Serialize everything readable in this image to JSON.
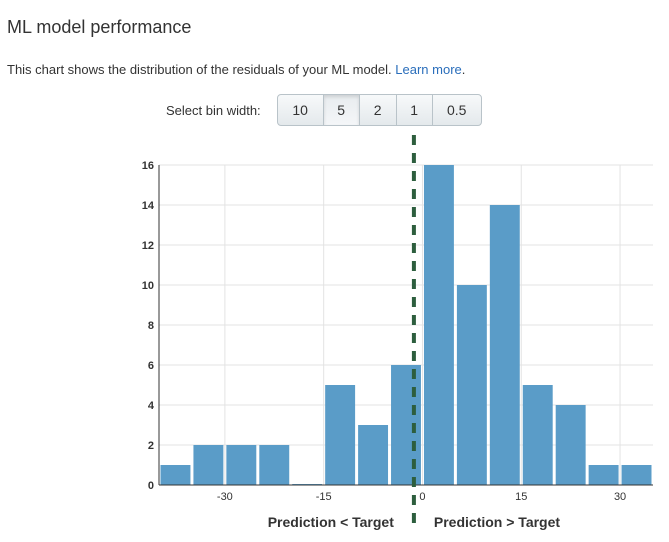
{
  "header": {
    "title": "ML model performance",
    "description": "This chart shows the distribution of the residuals of your ML model.",
    "learn_more": "Learn more",
    "period": "."
  },
  "bin_selector": {
    "label": "Select bin width:",
    "options": [
      "10",
      "5",
      "2",
      "1",
      "0.5"
    ],
    "selected": "5"
  },
  "colors": {
    "bar": "#5a9cc8",
    "divider": "#2d5e3e",
    "grid": "#e3e3e3"
  },
  "chart_data": {
    "type": "bar",
    "bin_width": 5,
    "bin_centers": [
      -37.5,
      -32.5,
      -27.5,
      -22.5,
      -17.5,
      -12.5,
      -7.5,
      -2.5,
      2.5,
      7.5,
      12.5,
      17.5,
      22.5,
      27.5,
      32.5
    ],
    "values": [
      1,
      2,
      2,
      2,
      0.05,
      5,
      3,
      6,
      16,
      10,
      14,
      5,
      4,
      1,
      1
    ],
    "xlim": [
      -40,
      35
    ],
    "ylim": [
      0,
      16
    ],
    "xticks": [
      -30,
      -15,
      0,
      15,
      30
    ],
    "yticks": [
      0,
      2,
      4,
      6,
      8,
      10,
      12,
      14,
      16
    ],
    "divider_x": -1.3,
    "left_label": "Prediction < Target",
    "right_label": "Prediction > Target",
    "grid": true
  }
}
